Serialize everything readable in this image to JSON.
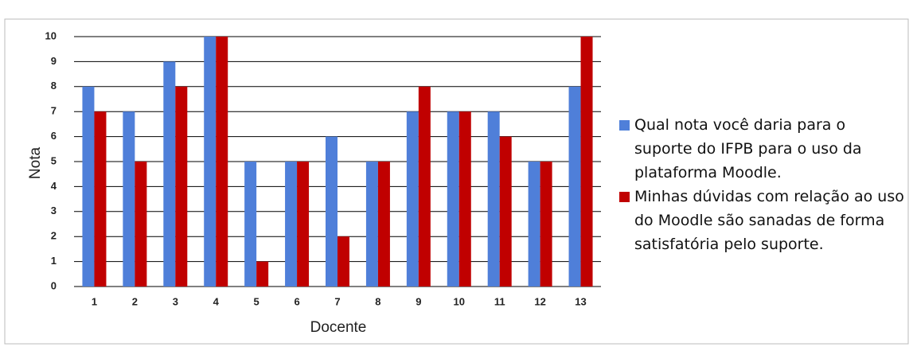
{
  "chart_data": {
    "type": "bar",
    "x_label": "Docente",
    "y_label": "Nota",
    "categories": [
      "1",
      "2",
      "3",
      "4",
      "5",
      "6",
      "7",
      "8",
      "9",
      "10",
      "11",
      "12",
      "13"
    ],
    "series": [
      {
        "name": "Qual nota você daria para o suporte do IFPB para o uso da plataforma Moodle.",
        "color": "#4f7fd9",
        "values": [
          8,
          7,
          9,
          10,
          5,
          5,
          6,
          5,
          7,
          7,
          7,
          5,
          8
        ]
      },
      {
        "name": "Minhas dúvidas com relação ao uso do Moodle são sanadas de forma satisfatória pelo suporte.",
        "color": "#c00000",
        "values": [
          7,
          5,
          8,
          10,
          1,
          5,
          2,
          5,
          8,
          7,
          6,
          5,
          10
        ]
      }
    ],
    "ylim": [
      0,
      10
    ],
    "yticks": [
      0,
      1,
      2,
      3,
      4,
      5,
      6,
      7,
      8,
      9,
      10
    ],
    "grid": true,
    "legend": "right"
  }
}
